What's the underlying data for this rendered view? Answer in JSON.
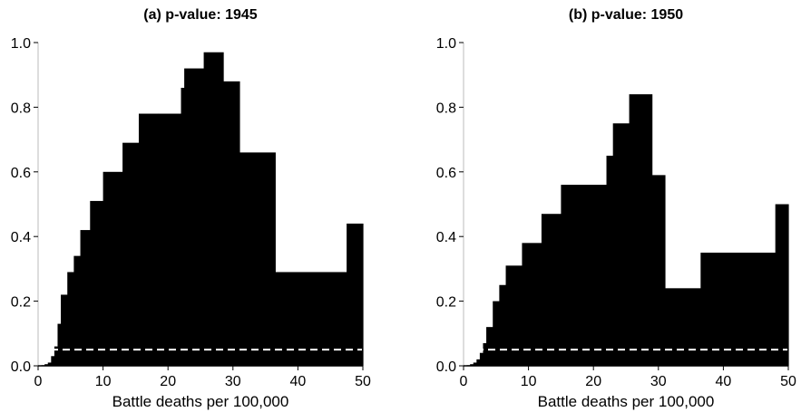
{
  "chart_data": [
    {
      "type": "area",
      "title": "(a) p-value: 1945",
      "xlabel": "Battle deaths per 100,000",
      "ylabel": "",
      "xlim": [
        0,
        50
      ],
      "ylim": [
        0,
        1.0
      ],
      "xticks": [
        "0",
        "10",
        "20",
        "30",
        "40",
        "50"
      ],
      "yticks": [
        "0.0",
        "0.2",
        "0.4",
        "0.6",
        "0.8",
        "1.0"
      ],
      "reference_line": {
        "y": 0.05,
        "style": "dashed",
        "color": "#ffffff"
      },
      "fill_color": "#000000",
      "steps": [
        {
          "x0": 0.0,
          "x1": 0.5,
          "y": 0.0
        },
        {
          "x0": 0.5,
          "x1": 1.0,
          "y": 0.002
        },
        {
          "x0": 1.0,
          "x1": 1.5,
          "y": 0.005
        },
        {
          "x0": 1.5,
          "x1": 2.0,
          "y": 0.01
        },
        {
          "x0": 2.0,
          "x1": 2.5,
          "y": 0.03
        },
        {
          "x0": 2.5,
          "x1": 3.0,
          "y": 0.06
        },
        {
          "x0": 3.0,
          "x1": 3.5,
          "y": 0.13
        },
        {
          "x0": 3.5,
          "x1": 4.5,
          "y": 0.22
        },
        {
          "x0": 4.5,
          "x1": 5.5,
          "y": 0.29
        },
        {
          "x0": 5.5,
          "x1": 6.5,
          "y": 0.34
        },
        {
          "x0": 6.5,
          "x1": 8.0,
          "y": 0.42
        },
        {
          "x0": 8.0,
          "x1": 10.0,
          "y": 0.51
        },
        {
          "x0": 10.0,
          "x1": 13.0,
          "y": 0.6
        },
        {
          "x0": 13.0,
          "x1": 15.5,
          "y": 0.69
        },
        {
          "x0": 15.5,
          "x1": 18.5,
          "y": 0.78
        },
        {
          "x0": 18.5,
          "x1": 22.0,
          "y": 0.78
        },
        {
          "x0": 22.0,
          "x1": 22.5,
          "y": 0.86
        },
        {
          "x0": 22.5,
          "x1": 25.5,
          "y": 0.92
        },
        {
          "x0": 25.5,
          "x1": 28.5,
          "y": 0.97
        },
        {
          "x0": 28.5,
          "x1": 31.0,
          "y": 0.88
        },
        {
          "x0": 31.0,
          "x1": 36.5,
          "y": 0.66
        },
        {
          "x0": 36.5,
          "x1": 47.5,
          "y": 0.29
        },
        {
          "x0": 47.5,
          "x1": 50.0,
          "y": 0.44
        }
      ]
    },
    {
      "type": "area",
      "title": "(b) p-value: 1950",
      "xlabel": "Battle deaths per 100,000",
      "ylabel": "",
      "xlim": [
        0,
        50
      ],
      "ylim": [
        0,
        1.0
      ],
      "xticks": [
        "0",
        "10",
        "20",
        "30",
        "40",
        "50"
      ],
      "yticks": [
        "0.0",
        "0.2",
        "0.4",
        "0.6",
        "0.8",
        "1.0"
      ],
      "reference_line": {
        "y": 0.05,
        "style": "dashed",
        "color": "#ffffff"
      },
      "fill_color": "#000000",
      "steps": [
        {
          "x0": 0.0,
          "x1": 0.5,
          "y": 0.0
        },
        {
          "x0": 0.5,
          "x1": 1.0,
          "y": 0.002
        },
        {
          "x0": 1.0,
          "x1": 1.5,
          "y": 0.005
        },
        {
          "x0": 1.5,
          "x1": 2.0,
          "y": 0.01
        },
        {
          "x0": 2.0,
          "x1": 2.5,
          "y": 0.02
        },
        {
          "x0": 2.5,
          "x1": 3.0,
          "y": 0.04
        },
        {
          "x0": 3.0,
          "x1": 3.5,
          "y": 0.07
        },
        {
          "x0": 3.5,
          "x1": 4.5,
          "y": 0.12
        },
        {
          "x0": 4.5,
          "x1": 5.5,
          "y": 0.2
        },
        {
          "x0": 5.5,
          "x1": 6.5,
          "y": 0.25
        },
        {
          "x0": 6.5,
          "x1": 9.0,
          "y": 0.31
        },
        {
          "x0": 9.0,
          "x1": 12.0,
          "y": 0.38
        },
        {
          "x0": 12.0,
          "x1": 15.0,
          "y": 0.47
        },
        {
          "x0": 15.0,
          "x1": 22.0,
          "y": 0.56
        },
        {
          "x0": 22.0,
          "x1": 23.0,
          "y": 0.65
        },
        {
          "x0": 23.0,
          "x1": 25.5,
          "y": 0.75
        },
        {
          "x0": 25.5,
          "x1": 29.0,
          "y": 0.84
        },
        {
          "x0": 29.0,
          "x1": 31.0,
          "y": 0.59
        },
        {
          "x0": 31.0,
          "x1": 36.5,
          "y": 0.24
        },
        {
          "x0": 36.5,
          "x1": 48.0,
          "y": 0.35
        },
        {
          "x0": 48.0,
          "x1": 50.0,
          "y": 0.5
        }
      ]
    }
  ]
}
